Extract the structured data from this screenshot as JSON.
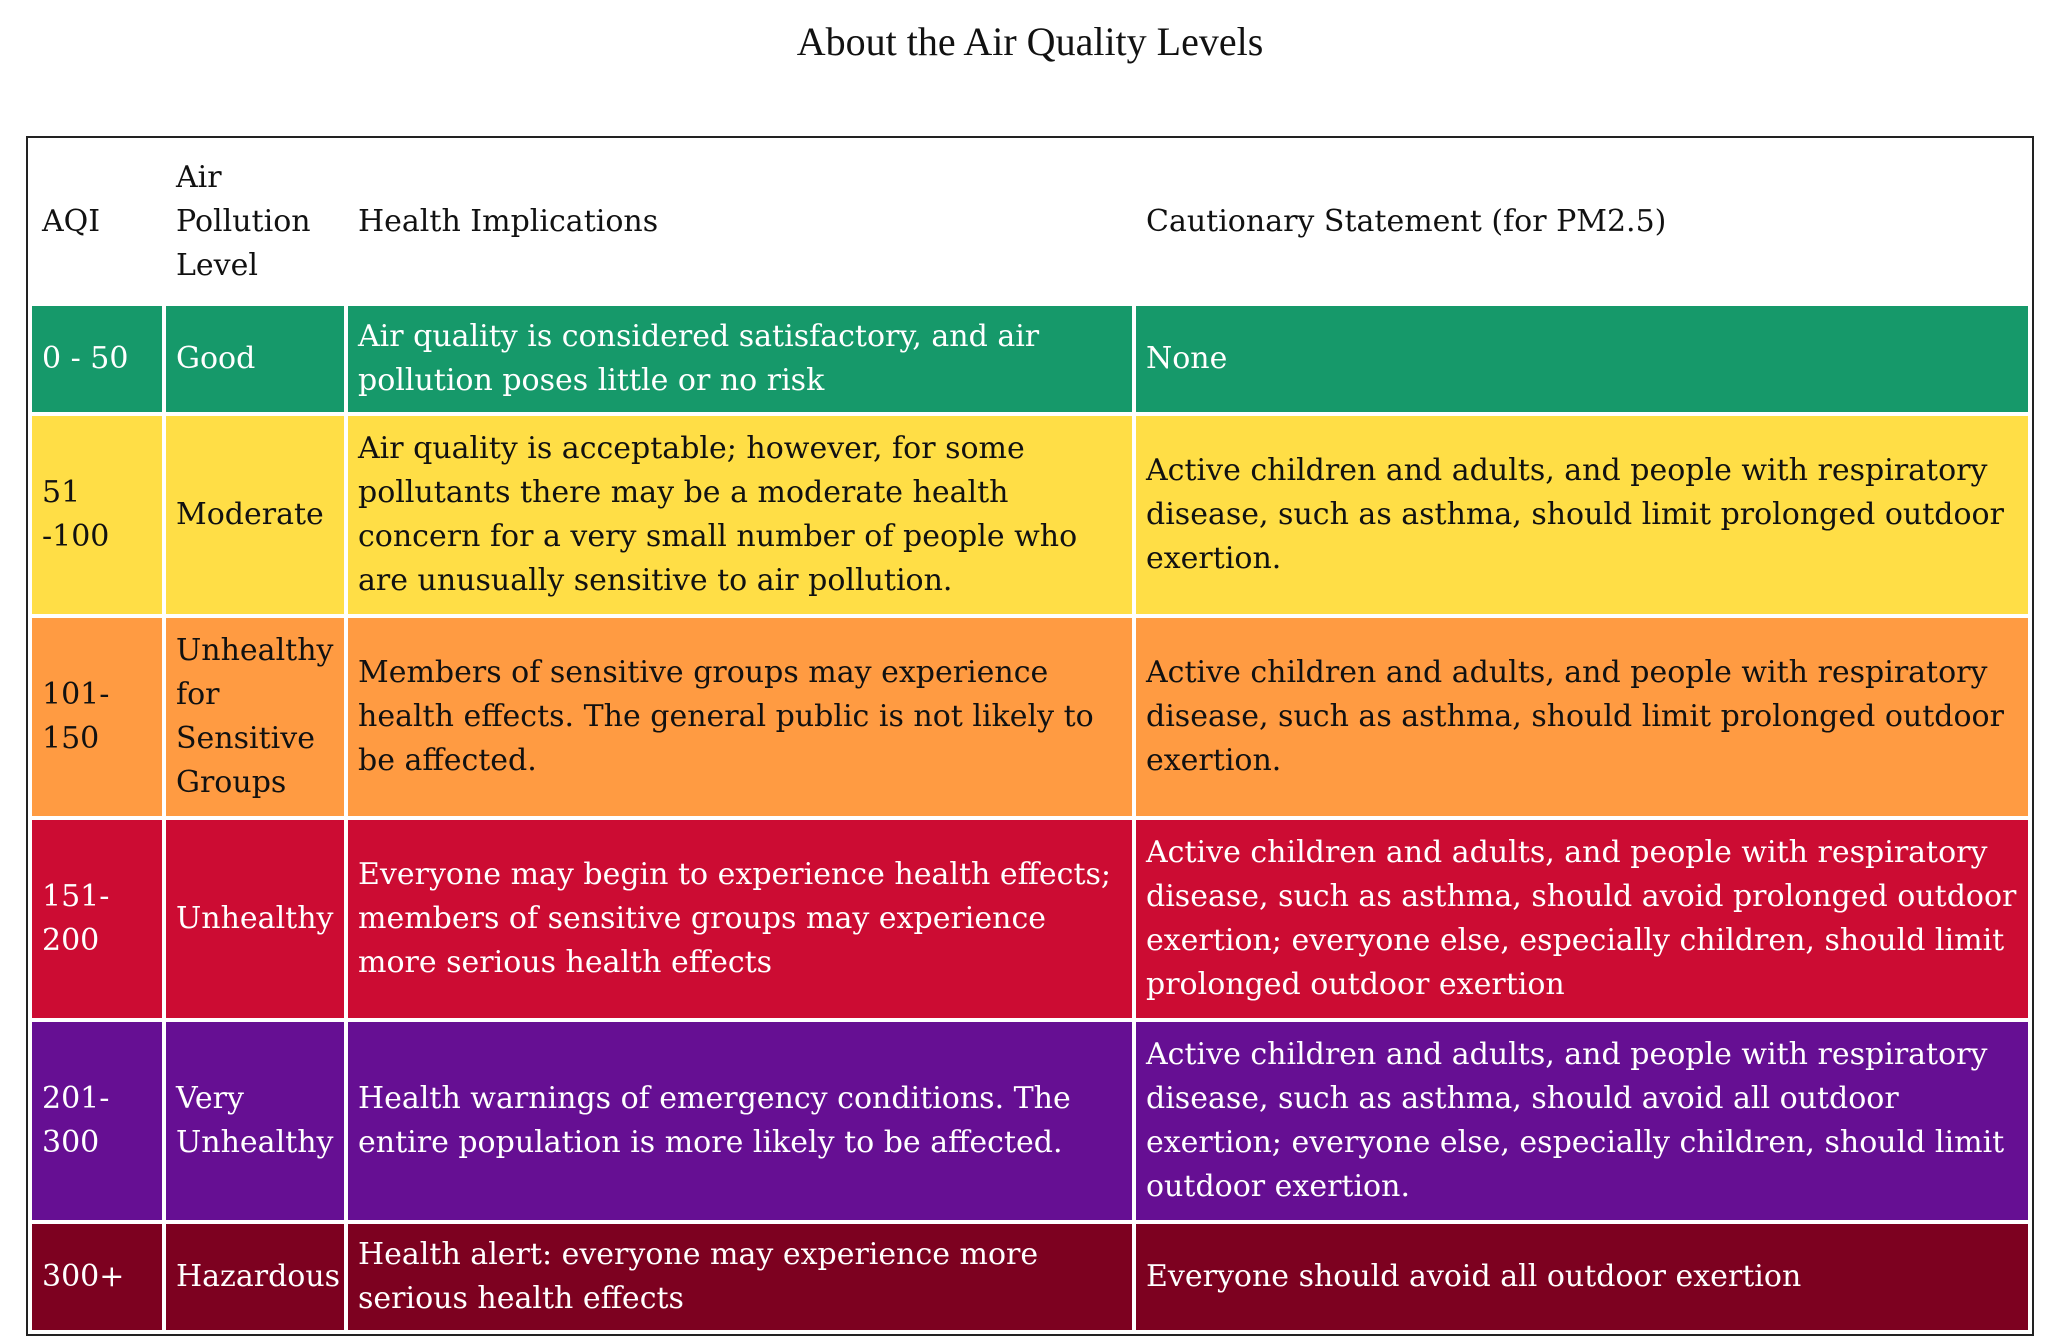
{
  "title": "About the Air Quality Levels",
  "columns": [
    "AQI",
    "Air Pollution Level",
    "Health Implications",
    "Cautionary Statement (for PM2.5)"
  ],
  "rows": [
    {
      "aqi": "0 - 50",
      "level": "Good",
      "health": "Air quality is considered satisfactory, and air pollution poses little or no risk",
      "caution": "None",
      "bg": "#16996a",
      "fg": "#ffffff"
    },
    {
      "aqi": "51 -100",
      "level": "Moderate",
      "health": "Air quality is acceptable; however, for some pollutants there may be a moderate health concern for a very small number of people who are unusually sensitive to air pollution.",
      "caution": "Active children and adults, and people with respiratory disease, such as asthma, should limit prolonged outdoor exertion.",
      "bg": "#ffde46",
      "fg": "#111111"
    },
    {
      "aqi": "101-150",
      "level": "Unhealthy for Sensitive Groups",
      "health": "Members of sensitive groups may experience health effects. The general public is not likely to be affected.",
      "caution": "Active children and adults, and people with respiratory disease, such as asthma, should limit prolonged outdoor exertion.",
      "bg": "#ff9b42",
      "fg": "#111111"
    },
    {
      "aqi": "151-200",
      "level": "Unhealthy",
      "health": "Everyone may begin to experience health effects; members of sensitive groups may experience more serious health effects",
      "caution": "Active children and adults, and people with respiratory disease, such as asthma, should avoid prolonged outdoor exertion; everyone else, especially children, should limit prolonged outdoor exertion",
      "bg": "#cc0c33",
      "fg": "#ffffff"
    },
    {
      "aqi": "201-300",
      "level": "Very Unhealthy",
      "health": "Health warnings of emergency conditions. The entire population is more likely to be affected.",
      "caution": "Active children and adults, and people with respiratory disease, such as asthma, should avoid all outdoor exertion; everyone else, especially children, should limit outdoor exertion.",
      "bg": "#660f93",
      "fg": "#ffffff"
    },
    {
      "aqi": "300+",
      "level": "Hazardous",
      "health": "Health alert: everyone may experience more serious health effects",
      "caution": "Everyone should avoid all outdoor exertion",
      "bg": "#7d0120",
      "fg": "#ffffff"
    }
  ]
}
